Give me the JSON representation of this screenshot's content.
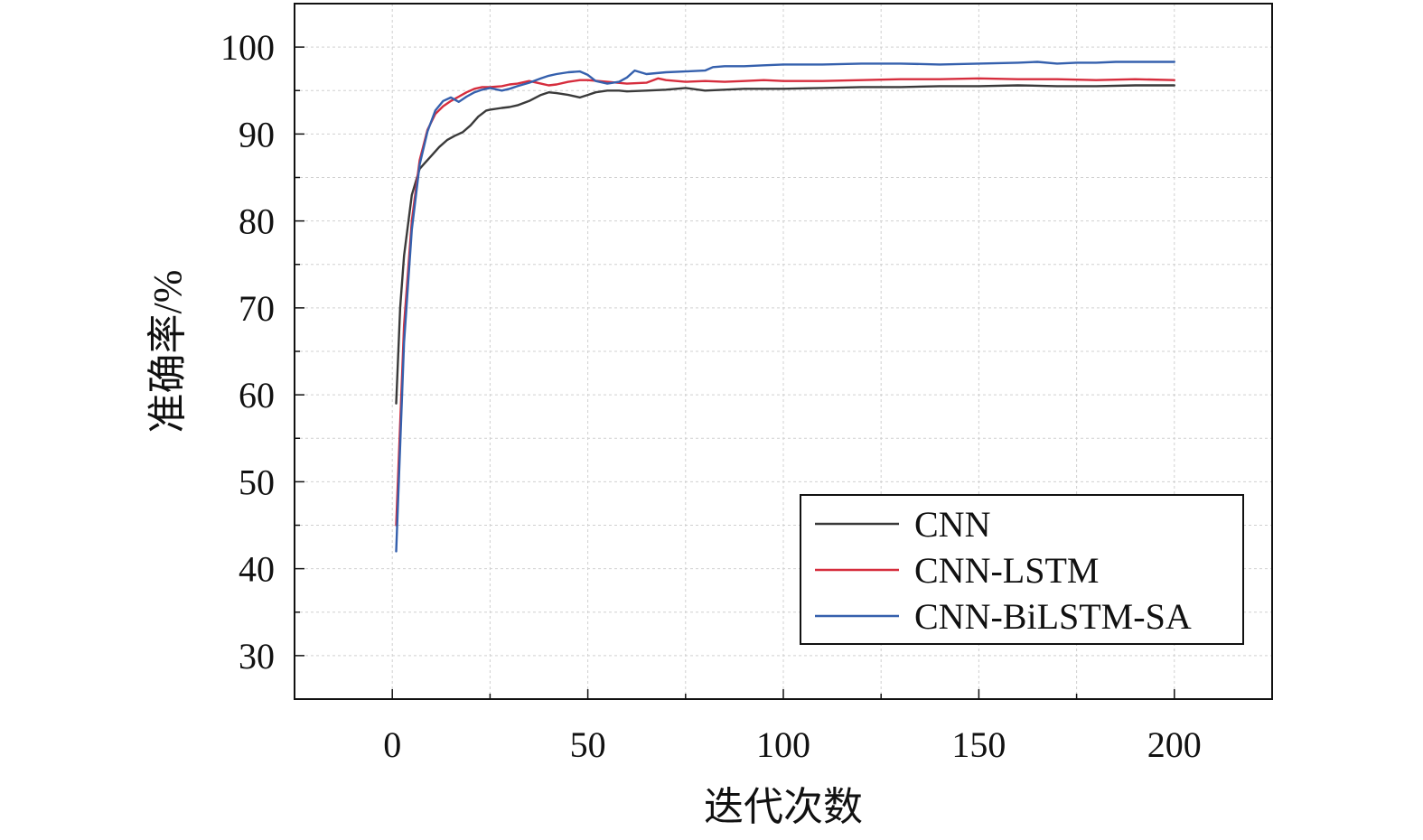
{
  "chart_data": {
    "type": "line",
    "xlabel": "迭代次数",
    "ylabel": "准确率/%",
    "xlim": [
      -25,
      225
    ],
    "ylim": [
      25,
      105
    ],
    "xticks": [
      "0",
      "50",
      "100",
      "150",
      "200"
    ],
    "yticks": [
      "30",
      "40",
      "50",
      "60",
      "70",
      "80",
      "90",
      "100"
    ],
    "grid": true,
    "legend": "bottom-right",
    "series": [
      {
        "name": "CNN",
        "color": "#3a3a3a",
        "x": [
          1,
          2,
          3,
          5,
          7,
          8,
          10,
          12,
          14,
          16,
          18,
          20,
          22,
          24,
          25,
          28,
          30,
          32,
          35,
          38,
          40,
          42,
          45,
          48,
          50,
          52,
          55,
          58,
          60,
          65,
          70,
          75,
          80,
          85,
          90,
          95,
          100,
          110,
          120,
          130,
          140,
          150,
          160,
          170,
          180,
          190,
          200
        ],
        "y": [
          59,
          70,
          76,
          83,
          86,
          86.5,
          87.5,
          88.5,
          89.3,
          89.8,
          90.2,
          91,
          92,
          92.7,
          92.8,
          93,
          93.1,
          93.3,
          93.8,
          94.5,
          94.8,
          94.7,
          94.5,
          94.2,
          94.5,
          94.8,
          95,
          95,
          94.9,
          95,
          95.1,
          95.3,
          95,
          95.1,
          95.2,
          95.2,
          95.2,
          95.3,
          95.4,
          95.4,
          95.5,
          95.5,
          95.6,
          95.5,
          95.5,
          95.6,
          95.6
        ]
      },
      {
        "name": "CNN-LSTM",
        "color": "#d62d3d",
        "x": [
          1,
          3,
          5,
          7,
          9,
          11,
          13,
          15,
          17,
          19,
          21,
          23,
          25,
          28,
          30,
          32,
          35,
          38,
          40,
          42,
          45,
          48,
          50,
          55,
          60,
          65,
          68,
          70,
          75,
          80,
          85,
          90,
          95,
          100,
          110,
          120,
          130,
          140,
          150,
          160,
          170,
          180,
          190,
          200
        ],
        "y": [
          45,
          68,
          80,
          87,
          90.5,
          92.3,
          93.2,
          93.8,
          94.3,
          94.8,
          95.2,
          95.4,
          95.4,
          95.5,
          95.7,
          95.8,
          96.1,
          95.8,
          95.6,
          95.7,
          96,
          96.2,
          96.2,
          96,
          95.8,
          95.9,
          96.4,
          96.2,
          96,
          96.1,
          96,
          96.1,
          96.2,
          96.1,
          96.1,
          96.2,
          96.3,
          96.3,
          96.4,
          96.3,
          96.3,
          96.2,
          96.3,
          96.2
        ]
      },
      {
        "name": "CNN-BiLSTM-SA",
        "color": "#3560ad",
        "x": [
          1,
          3,
          5,
          7,
          9,
          11,
          13,
          15,
          17,
          19,
          21,
          23,
          25,
          28,
          30,
          32,
          35,
          38,
          40,
          42,
          45,
          48,
          50,
          52,
          55,
          58,
          60,
          62,
          65,
          70,
          75,
          80,
          82,
          85,
          90,
          95,
          100,
          110,
          120,
          130,
          140,
          150,
          160,
          165,
          170,
          175,
          180,
          185,
          190,
          200
        ],
        "y": [
          42,
          66,
          79,
          86.5,
          90.3,
          92.7,
          93.8,
          94.2,
          93.7,
          94.3,
          94.8,
          95.1,
          95.3,
          95,
          95.2,
          95.5,
          95.9,
          96.4,
          96.7,
          96.9,
          97.1,
          97.2,
          96.8,
          96.1,
          95.8,
          96,
          96.5,
          97.3,
          96.9,
          97.1,
          97.2,
          97.3,
          97.7,
          97.8,
          97.8,
          97.9,
          98,
          98,
          98.1,
          98.1,
          98,
          98.1,
          98.2,
          98.3,
          98.1,
          98.2,
          98.2,
          98.3,
          98.3,
          98.3
        ]
      }
    ]
  }
}
